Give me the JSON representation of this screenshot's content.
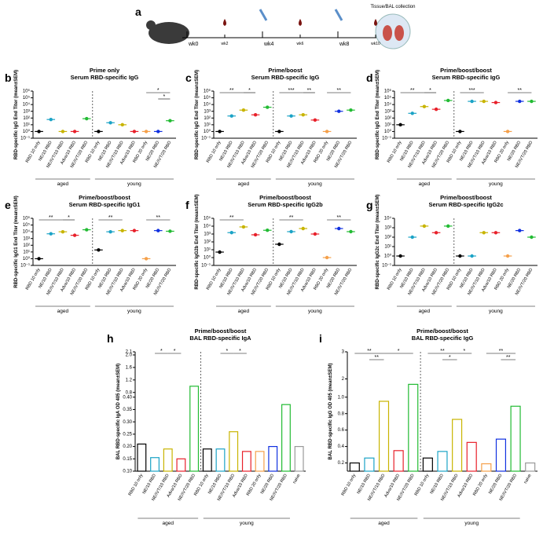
{
  "timeline": {
    "letter": "a",
    "weeks": [
      "wk0",
      "wk2",
      "wk4",
      "wk6",
      "wk8",
      "wk10"
    ],
    "collection": "Tissue/BAL collection"
  },
  "chart_data": [
    {
      "type": "dot",
      "letter": "b",
      "title": "Prime only",
      "subtitle": "Serum RBD-specific IgG",
      "y_label": "RBD-specific IgG End Titer (mean±SEM)",
      "log_scale": true,
      "categories": [
        "RBD 10 only",
        "NE/10 RBD",
        "NE/IVT/10 RBD",
        "Adva/10 RBD",
        "NE/IVT/20 RBD",
        "RBD 10 only",
        "NE/10 RBD",
        "NE/IVT/10 RBD",
        "Adva/10 RBD",
        "RBD 20 only",
        "NE/20 RBD",
        "NE/IVT/20 RBD"
      ],
      "colors": [
        "#000000",
        "#1ba3c6",
        "#c8b400",
        "#e8202a",
        "#22bb33",
        "#000000",
        "#1ba3c6",
        "#c8b400",
        "#e8202a",
        "#f5a04a",
        "#1030e0",
        "#22bb33"
      ],
      "values": [
        1,
        60,
        1,
        1,
        80,
        1,
        20,
        10,
        1,
        1,
        1,
        40
      ],
      "groups": [
        {
          "name": "aged",
          "size": 5
        },
        {
          "name": "young",
          "size": 7
        }
      ],
      "significance": [
        {
          "label": "*",
          "from": 9,
          "to": 11
        },
        {
          "label": "*",
          "from": 10,
          "to": 11
        }
      ],
      "ylim": [
        0.1,
        1000000
      ],
      "yticks": [
        {
          "value": 0.1,
          "label": "10⁻¹"
        },
        {
          "value": 1,
          "label": "10⁰"
        },
        {
          "value": 10,
          "label": "10¹"
        },
        {
          "value": 100,
          "label": "10²"
        },
        {
          "value": 1000,
          "label": "10³"
        },
        {
          "value": 10000,
          "label": "10⁴"
        },
        {
          "value": 100000,
          "label": "10⁵"
        },
        {
          "value": 1000000,
          "label": "10⁶"
        }
      ]
    },
    {
      "type": "dot",
      "letter": "c",
      "title": "Prime/boost",
      "subtitle": "Serum RBD-specific IgG",
      "y_label": "RBD-specific IgG End Titer (mean±SEM)",
      "log_scale": true,
      "categories": [
        "RBD 10 only",
        "NE/10 RBD",
        "NE/IVT/10 RBD",
        "Adva/10 RBD",
        "NE/IVT/20 RBD",
        "RBD 10 only",
        "NE/10 RBD",
        "NE/IVT/10 RBD",
        "Adva/10 RBD",
        "RBD 20 only",
        "NE/20 RBD",
        "NE/IVT/20 RBD"
      ],
      "colors": [
        "#000000",
        "#1ba3c6",
        "#c8b400",
        "#e8202a",
        "#22bb33",
        "#000000",
        "#1ba3c6",
        "#c8b400",
        "#e8202a",
        "#f5a04a",
        "#1030e0",
        "#22bb33"
      ],
      "values": [
        1,
        200,
        1500,
        300,
        4000,
        1,
        200,
        300,
        50,
        1,
        1000,
        1500
      ],
      "groups": [
        {
          "name": "aged",
          "size": 5
        },
        {
          "name": "young",
          "size": 7
        }
      ],
      "significance": [
        {
          "label": "**",
          "from": 0,
          "to": 2
        },
        {
          "label": "*",
          "from": 2,
          "to": 3
        },
        {
          "label": "***",
          "from": 5,
          "to": 7
        },
        {
          "label": "**",
          "from": 7,
          "to": 8
        },
        {
          "label": "**",
          "from": 9,
          "to": 11
        }
      ],
      "ylim": [
        0.1,
        1000000
      ],
      "yticks": [
        {
          "value": 0.1,
          "label": "10⁻¹"
        },
        {
          "value": 1,
          "label": "10⁰"
        },
        {
          "value": 10,
          "label": "10¹"
        },
        {
          "value": 100,
          "label": "10²"
        },
        {
          "value": 1000,
          "label": "10³"
        },
        {
          "value": 10000,
          "label": "10⁴"
        },
        {
          "value": 100000,
          "label": "10⁵"
        },
        {
          "value": 1000000,
          "label": "10⁶"
        }
      ]
    },
    {
      "type": "dot",
      "letter": "d",
      "title": "Prime/boost/boost",
      "subtitle": "Serum RBD-specific IgG",
      "y_label": "RBD-specific IgG End Titer (mean±SEM)",
      "log_scale": true,
      "categories": [
        "RBD 10 only",
        "NE/10 RBD",
        "NE/IVT/10 RBD",
        "Adva/10 RBD",
        "NE/IVT/20 RBD",
        "RBD 10 only",
        "NE/10 RBD",
        "NE/IVT/10 RBD",
        "Adva/10 RBD",
        "RBD 20 only",
        "NE/20 RBD",
        "NE/IVT/20 RBD"
      ],
      "colors": [
        "#000000",
        "#1ba3c6",
        "#c8b400",
        "#e8202a",
        "#22bb33",
        "#000000",
        "#1ba3c6",
        "#c8b400",
        "#e8202a",
        "#f5a04a",
        "#1030e0",
        "#22bb33"
      ],
      "values": [
        10,
        500,
        5000,
        2000,
        40000,
        1,
        30000,
        30000,
        20000,
        1,
        30000,
        30000
      ],
      "groups": [
        {
          "name": "aged",
          "size": 5
        },
        {
          "name": "young",
          "size": 7
        }
      ],
      "significance": [
        {
          "label": "**",
          "from": 0,
          "to": 2
        },
        {
          "label": "*",
          "from": 2,
          "to": 3
        },
        {
          "label": "***",
          "from": 5,
          "to": 7
        },
        {
          "label": "**",
          "from": 9,
          "to": 11
        }
      ],
      "ylim": [
        0.1,
        1000000
      ],
      "yticks": [
        {
          "value": 0.1,
          "label": "10⁻¹"
        },
        {
          "value": 1,
          "label": "10⁰"
        },
        {
          "value": 10,
          "label": "10¹"
        },
        {
          "value": 100,
          "label": "10²"
        },
        {
          "value": 1000,
          "label": "10³"
        },
        {
          "value": 10000,
          "label": "10⁴"
        },
        {
          "value": 100000,
          "label": "10⁵"
        },
        {
          "value": 1000000,
          "label": "10⁶"
        }
      ]
    },
    {
      "type": "dot",
      "letter": "e",
      "title": "Prime/boost/boost",
      "subtitle": "Serum RBD-specific IgG1",
      "y_label": "RBD-specific IgG1 End Titer (mean±SEM)",
      "log_scale": true,
      "categories": [
        "RBD 10 only",
        "NE/10 RBD",
        "NE/IVT/10 RBD",
        "Adva/10 RBD",
        "NE/IVT/20 RBD",
        "RBD 10 only",
        "NE/10 RBD",
        "NE/IVT/10 RBD",
        "Adva/10 RBD",
        "RBD 20 only",
        "NE/20 RBD",
        "NE/IVT/20 RBD"
      ],
      "colors": [
        "#000000",
        "#1ba3c6",
        "#c8b400",
        "#e8202a",
        "#22bb33",
        "#000000",
        "#1ba3c6",
        "#c8b400",
        "#e8202a",
        "#f5a04a",
        "#1030e0",
        "#22bb33"
      ],
      "values": [
        1,
        5000,
        10000,
        3000,
        20000,
        20,
        10000,
        15000,
        15000,
        1,
        15000,
        12000
      ],
      "groups": [
        {
          "name": "aged",
          "size": 5
        },
        {
          "name": "young",
          "size": 7
        }
      ],
      "significance": [
        {
          "label": "**",
          "from": 0,
          "to": 2
        },
        {
          "label": "*",
          "from": 2,
          "to": 3
        },
        {
          "label": "**",
          "from": 5,
          "to": 7
        },
        {
          "label": "**",
          "from": 9,
          "to": 11
        }
      ],
      "ylim": [
        0.1,
        1000000
      ],
      "yticks": [
        {
          "value": 0.1,
          "label": "10⁻¹"
        },
        {
          "value": 1,
          "label": "10⁰"
        },
        {
          "value": 10,
          "label": "10¹"
        },
        {
          "value": 100,
          "label": "10²"
        },
        {
          "value": 1000,
          "label": "10³"
        },
        {
          "value": 10000,
          "label": "10⁴"
        },
        {
          "value": 100000,
          "label": "10⁵"
        },
        {
          "value": 1000000,
          "label": "10⁶"
        }
      ]
    },
    {
      "type": "dot",
      "letter": "f",
      "title": "Prime/boost/boost",
      "subtitle": "Serum RBD-specific IgG2b",
      "y_label": "RBD-specific IgG2b End Titer (mean±SEM)",
      "log_scale": true,
      "categories": [
        "RBD 10 only",
        "NE/10 RBD",
        "NE/IVT/10 RBD",
        "Adva/10 RBD",
        "NE/IVT/20 RBD",
        "RBD 10 only",
        "NE/10 RBD",
        "NE/IVT/10 RBD",
        "Adva/10 RBD",
        "RBD 20 only",
        "NE/20 RBD",
        "NE/IVT/20 RBD"
      ],
      "colors": [
        "#000000",
        "#1ba3c6",
        "#c8b400",
        "#e8202a",
        "#22bb33",
        "#000000",
        "#1ba3c6",
        "#c8b400",
        "#e8202a",
        "#f5a04a",
        "#1030e0",
        "#22bb33"
      ],
      "values": [
        5,
        1500,
        8000,
        800,
        3000,
        50,
        2000,
        5000,
        1000,
        1,
        5000,
        2000
      ],
      "groups": [
        {
          "name": "aged",
          "size": 5
        },
        {
          "name": "young",
          "size": 7
        }
      ],
      "significance": [
        {
          "label": "**",
          "from": 0,
          "to": 2
        },
        {
          "label": "**",
          "from": 5,
          "to": 7
        },
        {
          "label": "**",
          "from": 9,
          "to": 11
        }
      ],
      "ylim": [
        0.1,
        100000
      ],
      "yticks": [
        {
          "value": 0.1,
          "label": "10⁻¹"
        },
        {
          "value": 1,
          "label": "10⁰"
        },
        {
          "value": 10,
          "label": "10¹"
        },
        {
          "value": 100,
          "label": "10²"
        },
        {
          "value": 1000,
          "label": "10³"
        },
        {
          "value": 10000,
          "label": "10⁴"
        },
        {
          "value": 100000,
          "label": "10⁵"
        }
      ]
    },
    {
      "type": "dot",
      "letter": "g",
      "title": "Prime/boost/boost",
      "subtitle": "Serum RBD-specific IgG2c",
      "y_label": "RBD-specific IgG2c End Titer (mean±SEM)",
      "log_scale": true,
      "categories": [
        "RBD 10 only",
        "NE/10 RBD",
        "NE/IVT/10 RBD",
        "Adva/10 RBD",
        "NE/IVT/20 RBD",
        "RBD 10 only",
        "NE/10 RBD",
        "NE/IVT/10 RBD",
        "Adva/10 RBD",
        "RBD 20 only",
        "NE/20 RBD",
        "NE/IVT/20 RBD"
      ],
      "colors": [
        "#000000",
        "#1ba3c6",
        "#c8b400",
        "#e8202a",
        "#22bb33",
        "#000000",
        "#1ba3c6",
        "#c8b400",
        "#e8202a",
        "#f5a04a",
        "#1030e0",
        "#22bb33"
      ],
      "values": [
        1,
        100,
        1500,
        300,
        1500,
        1,
        1,
        300,
        300,
        1,
        500,
        100
      ],
      "groups": [
        {
          "name": "aged",
          "size": 5
        },
        {
          "name": "young",
          "size": 7
        }
      ],
      "significance": [],
      "ylim": [
        0.1,
        10000
      ],
      "yticks": [
        {
          "value": 0.1,
          "label": "10⁻¹"
        },
        {
          "value": 1,
          "label": "10⁰"
        },
        {
          "value": 10,
          "label": "10¹"
        },
        {
          "value": 100,
          "label": "10²"
        },
        {
          "value": 1000,
          "label": "10³"
        },
        {
          "value": 10000,
          "label": "10⁴"
        }
      ]
    },
    {
      "type": "bar",
      "letter": "h",
      "title": "Prime/boost/boost",
      "subtitle": "BAL RBD-specific IgA",
      "y_label": "BAL RBD-specific IgA OD 405 (mean±SEM)",
      "log_scale": false,
      "categories": [
        "RBD 10 only",
        "NE/10 RBD",
        "NE/IVT/10 RBD",
        "Adva/10 RBD",
        "NE/IVT/20 RBD",
        "RBD 10 only",
        "NE/10 RBD",
        "NE/IVT/10 RBD",
        "Adva/10 RBD",
        "RBD 20 only",
        "NE/20 RBD",
        "NE/IVT/20 RBD",
        "naive"
      ],
      "colors": [
        "#000000",
        "#1ba3c6",
        "#c8b400",
        "#e8202a",
        "#22bb33",
        "#000000",
        "#1ba3c6",
        "#c8b400",
        "#e8202a",
        "#f5a04a",
        "#1030e0",
        "#22bb33",
        "#999999"
      ],
      "values": [
        0.21,
        0.155,
        0.19,
        0.15,
        1.0,
        0.19,
        0.19,
        0.26,
        0.18,
        0.18,
        0.2,
        0.37,
        0.2
      ],
      "groups": [
        {
          "name": "aged",
          "size": 5
        },
        {
          "name": "young",
          "size": 7
        }
      ],
      "significance": [
        {
          "label": "*",
          "from": 1,
          "to": 2
        },
        {
          "label": "*",
          "from": 2,
          "to": 3
        },
        {
          "label": "*",
          "from": 6,
          "to": 7
        },
        {
          "label": "*",
          "from": 7,
          "to": 8
        }
      ],
      "ylim": [
        0.1,
        2.1
      ],
      "ybreak": [
        0.4,
        0.8
      ],
      "yticks": [
        {
          "value": 0.1,
          "label": "0.10"
        },
        0.15,
        {
          "value": 0.2,
          "label": "0.20"
        },
        0.25,
        {
          "value": 0.3,
          "label": "0.30"
        },
        0.35,
        {
          "value": 0.4,
          "label": "0.40"
        },
        0.8,
        1.2,
        1.6,
        {
          "value": 2,
          "label": "2.0"
        },
        2.1
      ]
    },
    {
      "type": "bar",
      "letter": "i",
      "title": "Prime/boost/boost",
      "subtitle": "BAL RBD-specific IgG",
      "y_label": "BAL RBD-specific IgG OD 405 (mean±SEM)",
      "log_scale": false,
      "categories": [
        "RBD 10 only",
        "NE/10 RBD",
        "NE/IVT/10 RBD",
        "Adva/10 RBD",
        "NE/IVT/20 RBD",
        "RBD 10 only",
        "NE/10 RBD",
        "NE/IVT/10 RBD",
        "Adva/10 RBD",
        "RBD 20 only",
        "NE/20 RBD",
        "NE/IVT/20 RBD",
        "naive"
      ],
      "colors": [
        "#000000",
        "#1ba3c6",
        "#c8b400",
        "#e8202a",
        "#22bb33",
        "#000000",
        "#1ba3c6",
        "#c8b400",
        "#e8202a",
        "#f5a04a",
        "#1030e0",
        "#22bb33",
        "#999999"
      ],
      "values": [
        0.2,
        0.26,
        0.95,
        0.35,
        1.8,
        0.26,
        0.34,
        0.73,
        0.45,
        0.19,
        0.49,
        0.89,
        0.2
      ],
      "groups": [
        {
          "name": "aged",
          "size": 5
        },
        {
          "name": "young",
          "size": 7
        }
      ],
      "significance": [
        {
          "label": "**",
          "from": 0,
          "to": 2
        },
        {
          "label": "**",
          "from": 1,
          "to": 2
        },
        {
          "label": "*",
          "from": 2,
          "to": 4
        },
        {
          "label": "**",
          "from": 5,
          "to": 7
        },
        {
          "label": "*",
          "from": 6,
          "to": 7
        },
        {
          "label": "*",
          "from": 7,
          "to": 8
        },
        {
          "label": "**",
          "from": 9,
          "to": 11
        },
        {
          "label": "**",
          "from": 10,
          "to": 11
        }
      ],
      "ylim": [
        0.1,
        3
      ],
      "ybreak": [
        1.0,
        1.5
      ],
      "yticks": [
        0.2,
        0.4,
        0.6,
        0.8,
        {
          "value": 1,
          "label": "1.0"
        },
        2,
        3
      ]
    }
  ]
}
